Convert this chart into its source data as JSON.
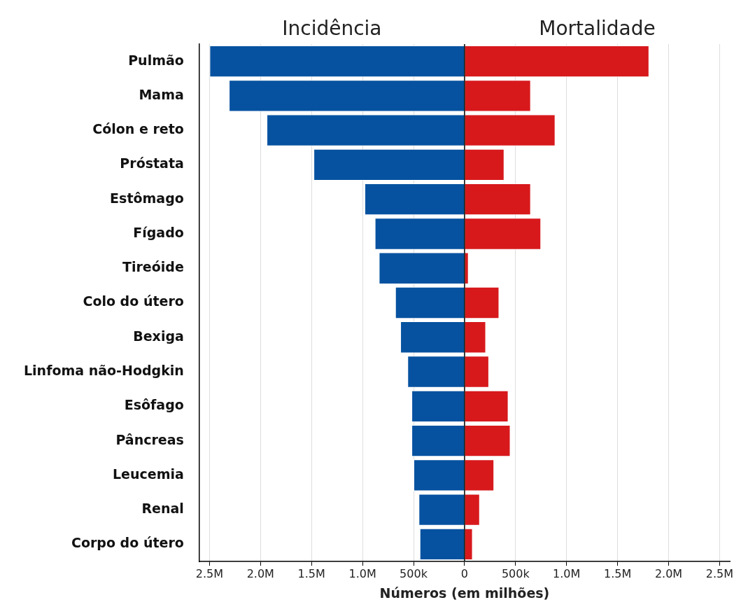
{
  "chart_data": {
    "type": "bar",
    "orientation": "horizontal",
    "stacked": true,
    "xlabel": "Números (em milhões)",
    "categories": [
      "Pulmão",
      "Mama",
      "Cólon e reto",
      "Próstata",
      "Estômago",
      "Fígado",
      "Tireóide",
      "Colo do útero",
      "Bexiga",
      "Linfoma não-Hodgkin",
      "Esôfago",
      "Pâncreas",
      "Leucemia",
      "Renal",
      "Corpo do útero"
    ],
    "series": [
      {
        "name": "Incidência",
        "color": "#0652a0",
        "values": [
          -2500000,
          -2310000,
          -1940000,
          -1480000,
          -980000,
          -880000,
          -840000,
          -680000,
          -630000,
          -560000,
          -520000,
          -520000,
          -500000,
          -450000,
          -440000
        ]
      },
      {
        "name": "Mortalidade",
        "color": "#d7191c",
        "values": [
          1810000,
          650000,
          890000,
          390000,
          650000,
          750000,
          40000,
          340000,
          210000,
          240000,
          430000,
          450000,
          290000,
          150000,
          80000
        ]
      }
    ],
    "xlim": [
      -2600000,
      2600000
    ],
    "xticks": [
      {
        "value": -2500000,
        "label": "2.5M"
      },
      {
        "value": -2000000,
        "label": "2.0M"
      },
      {
        "value": -1500000,
        "label": "1.5M"
      },
      {
        "value": -1000000,
        "label": "1.0M"
      },
      {
        "value": -500000,
        "label": "500k"
      },
      0,
      {
        "value": 500000,
        "label": "500k"
      },
      {
        "value": 1000000,
        "label": "1.0M"
      },
      {
        "value": 1500000,
        "label": "1.5M"
      },
      {
        "value": 2000000,
        "label": "2.0M"
      },
      {
        "value": 2500000,
        "label": "2.5M"
      }
    ],
    "grid": "x"
  }
}
